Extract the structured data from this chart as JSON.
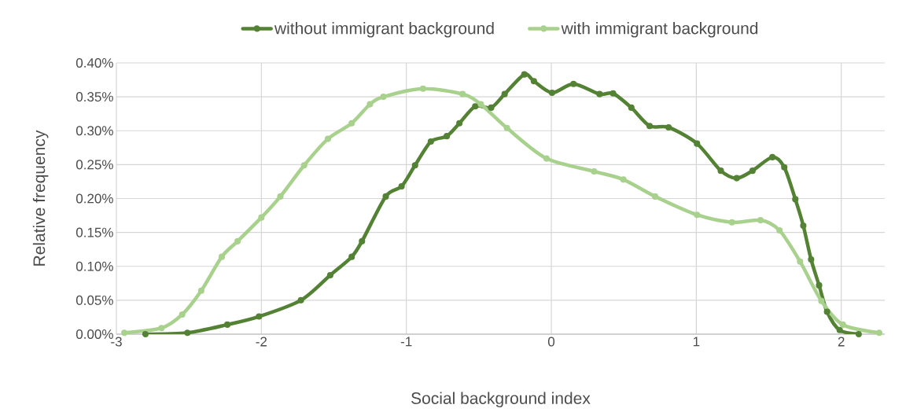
{
  "chart_data": {
    "type": "line",
    "xlabel": "Social background index",
    "ylabel": "Relative frequency",
    "xlim": [
      -3,
      2.3
    ],
    "ylim": [
      0,
      0.4
    ],
    "xticks": [
      -3,
      -2,
      -1,
      0,
      1,
      2
    ],
    "yticks": [
      {
        "value": 0,
        "label": "0.00%"
      },
      {
        "value": 0.05,
        "label": "0.05%"
      },
      {
        "value": 0.1,
        "label": "0.10%"
      },
      {
        "value": 0.15,
        "label": "0.15%"
      },
      {
        "value": 0.2,
        "label": "0.20%"
      },
      {
        "value": 0.25,
        "label": "0.25%"
      },
      {
        "value": 0.3,
        "label": "0.30%"
      },
      {
        "value": 0.35,
        "label": "0.35%"
      },
      {
        "value": 0.4,
        "label": "0.40%"
      }
    ],
    "grid": true,
    "legend": "top",
    "marker": "circle",
    "line_style": "solid",
    "series": [
      {
        "name": "without immigrant background",
        "color": "#548235",
        "x": [
          -2.8,
          -2.51,
          -2.235,
          -2.016,
          -1.727,
          -1.525,
          -1.377,
          -1.306,
          -1.142,
          -1.033,
          -0.94,
          -0.831,
          -0.721,
          -0.634,
          -0.525,
          -0.415,
          -0.322,
          -0.186,
          -0.12,
          0.005,
          0.153,
          0.333,
          0.426,
          0.552,
          0.678,
          0.809,
          1.005,
          1.169,
          1.279,
          1.388,
          1.525,
          1.607,
          1.683,
          1.738,
          1.792,
          1.847,
          1.902,
          1.989,
          2.12
        ],
        "values": [
          0,
          0.002,
          0.014,
          0.026,
          0.05,
          0.087,
          0.114,
          0.137,
          0.203,
          0.218,
          0.249,
          0.284,
          0.292,
          0.311,
          0.336,
          0.334,
          0.354,
          0.383,
          0.373,
          0.356,
          0.369,
          0.354,
          0.355,
          0.334,
          0.307,
          0.305,
          0.281,
          0.241,
          0.23,
          0.241,
          0.261,
          0.246,
          0.199,
          0.16,
          0.11,
          0.072,
          0.033,
          0.006,
          0
        ]
      },
      {
        "name": "with immigrant background",
        "color": "#a9d18e",
        "x": [
          -2.945,
          -2.689,
          -2.546,
          -2.415,
          -2.273,
          -2.164,
          -2.0,
          -1.869,
          -1.705,
          -1.541,
          -1.377,
          -1.251,
          -1.158,
          -0.885,
          -0.612,
          -0.486,
          -0.306,
          -0.033,
          0.295,
          0.497,
          0.716,
          1.005,
          1.246,
          1.443,
          1.574,
          1.716,
          1.863,
          2.011,
          2.262
        ],
        "values": [
          0.002,
          0.009,
          0.029,
          0.064,
          0.114,
          0.137,
          0.172,
          0.203,
          0.249,
          0.288,
          0.311,
          0.339,
          0.35,
          0.362,
          0.354,
          0.339,
          0.304,
          0.259,
          0.24,
          0.228,
          0.203,
          0.176,
          0.165,
          0.168,
          0.153,
          0.107,
          0.049,
          0.014,
          0.002
        ]
      }
    ]
  }
}
